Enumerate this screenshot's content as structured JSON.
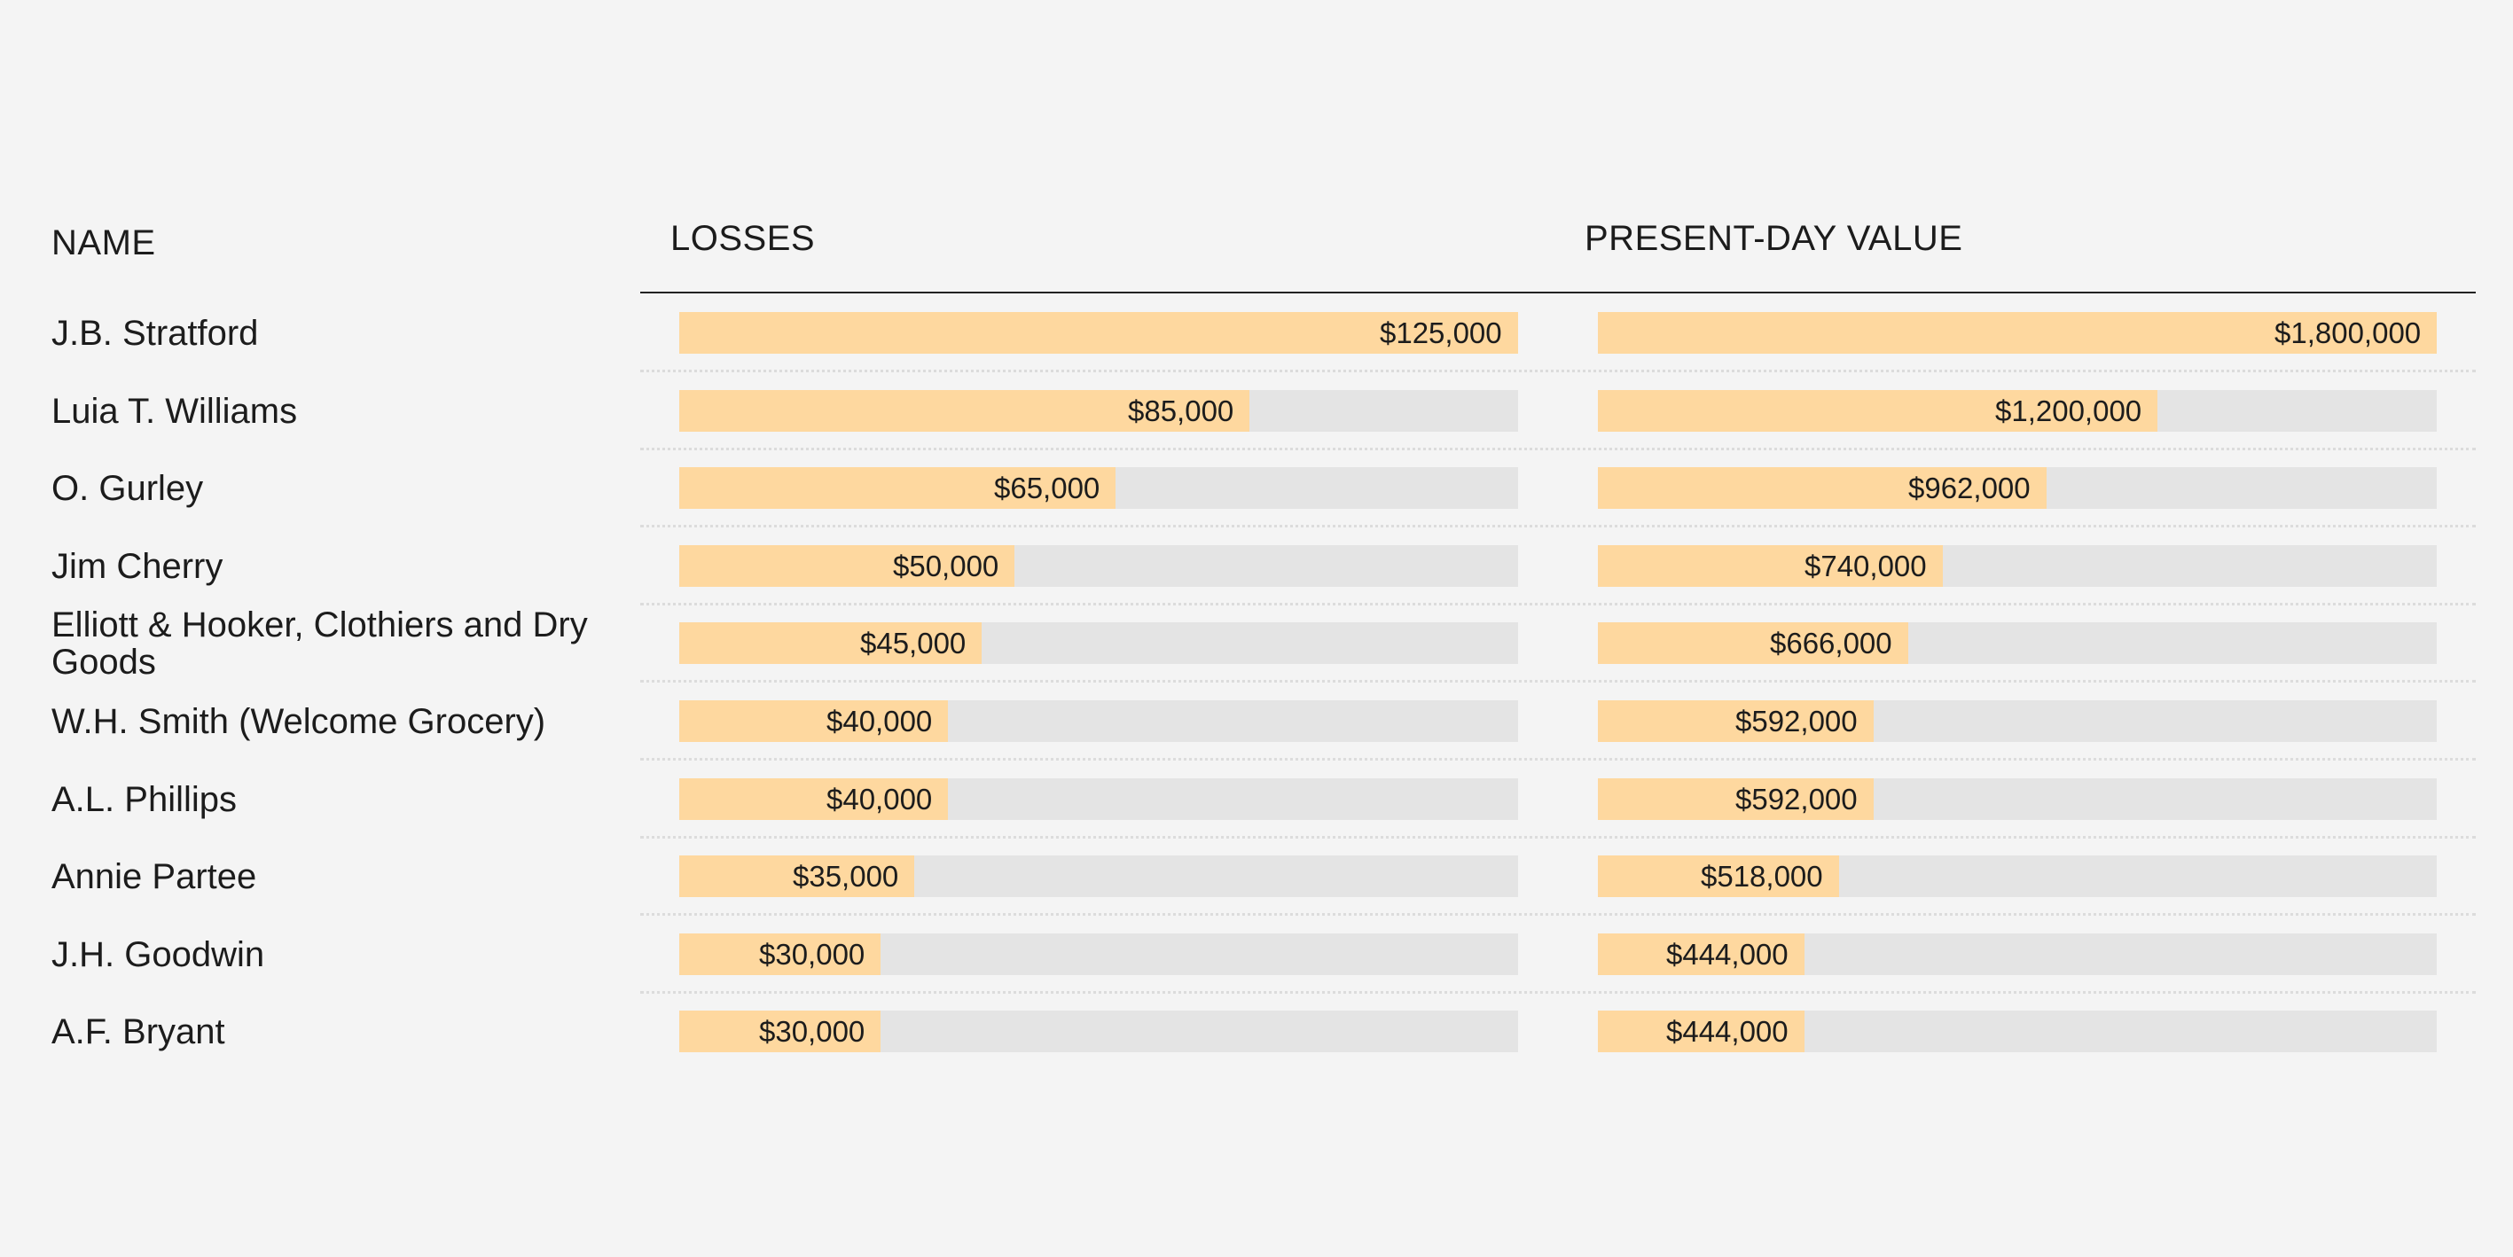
{
  "chart_data": {
    "type": "bar",
    "headers": {
      "name": "NAME",
      "losses": "LOSSES",
      "present": "PRESENT-DAY VALUE"
    },
    "rows": [
      {
        "name": "J.B. Stratford",
        "losses": 125000,
        "losses_label": "$125,000",
        "present": 1800000,
        "present_label": "$1,800,000"
      },
      {
        "name": "Luia T. Williams",
        "losses": 85000,
        "losses_label": "$85,000",
        "present": 1200000,
        "present_label": "$1,200,000"
      },
      {
        "name": "O. Gurley",
        "losses": 65000,
        "losses_label": "$65,000",
        "present": 962000,
        "present_label": "$962,000"
      },
      {
        "name": "Jim Cherry",
        "losses": 50000,
        "losses_label": "$50,000",
        "present": 740000,
        "present_label": "$740,000"
      },
      {
        "name": "Elliott & Hooker, Clothiers and Dry Goods",
        "losses": 45000,
        "losses_label": "$45,000",
        "present": 666000,
        "present_label": "$666,000"
      },
      {
        "name": "W.H. Smith (Welcome Grocery)",
        "losses": 40000,
        "losses_label": "$40,000",
        "present": 592000,
        "present_label": "$592,000"
      },
      {
        "name": "A.L. Phillips",
        "losses": 40000,
        "losses_label": "$40,000",
        "present": 592000,
        "present_label": "$592,000"
      },
      {
        "name": "Annie Partee",
        "losses": 35000,
        "losses_label": "$35,000",
        "present": 518000,
        "present_label": "$518,000"
      },
      {
        "name": "J.H. Goodwin",
        "losses": 30000,
        "losses_label": "$30,000",
        "present": 444000,
        "present_label": "$444,000"
      },
      {
        "name": "A.F. Bryant",
        "losses": 30000,
        "losses_label": "$30,000",
        "present": 444000,
        "present_label": "$444,000"
      }
    ],
    "losses_max": 125000,
    "present_max": 1800000,
    "colors": {
      "bar": "#fed89f",
      "track": "#e4e4e4",
      "background": "#f4f4f4"
    }
  }
}
